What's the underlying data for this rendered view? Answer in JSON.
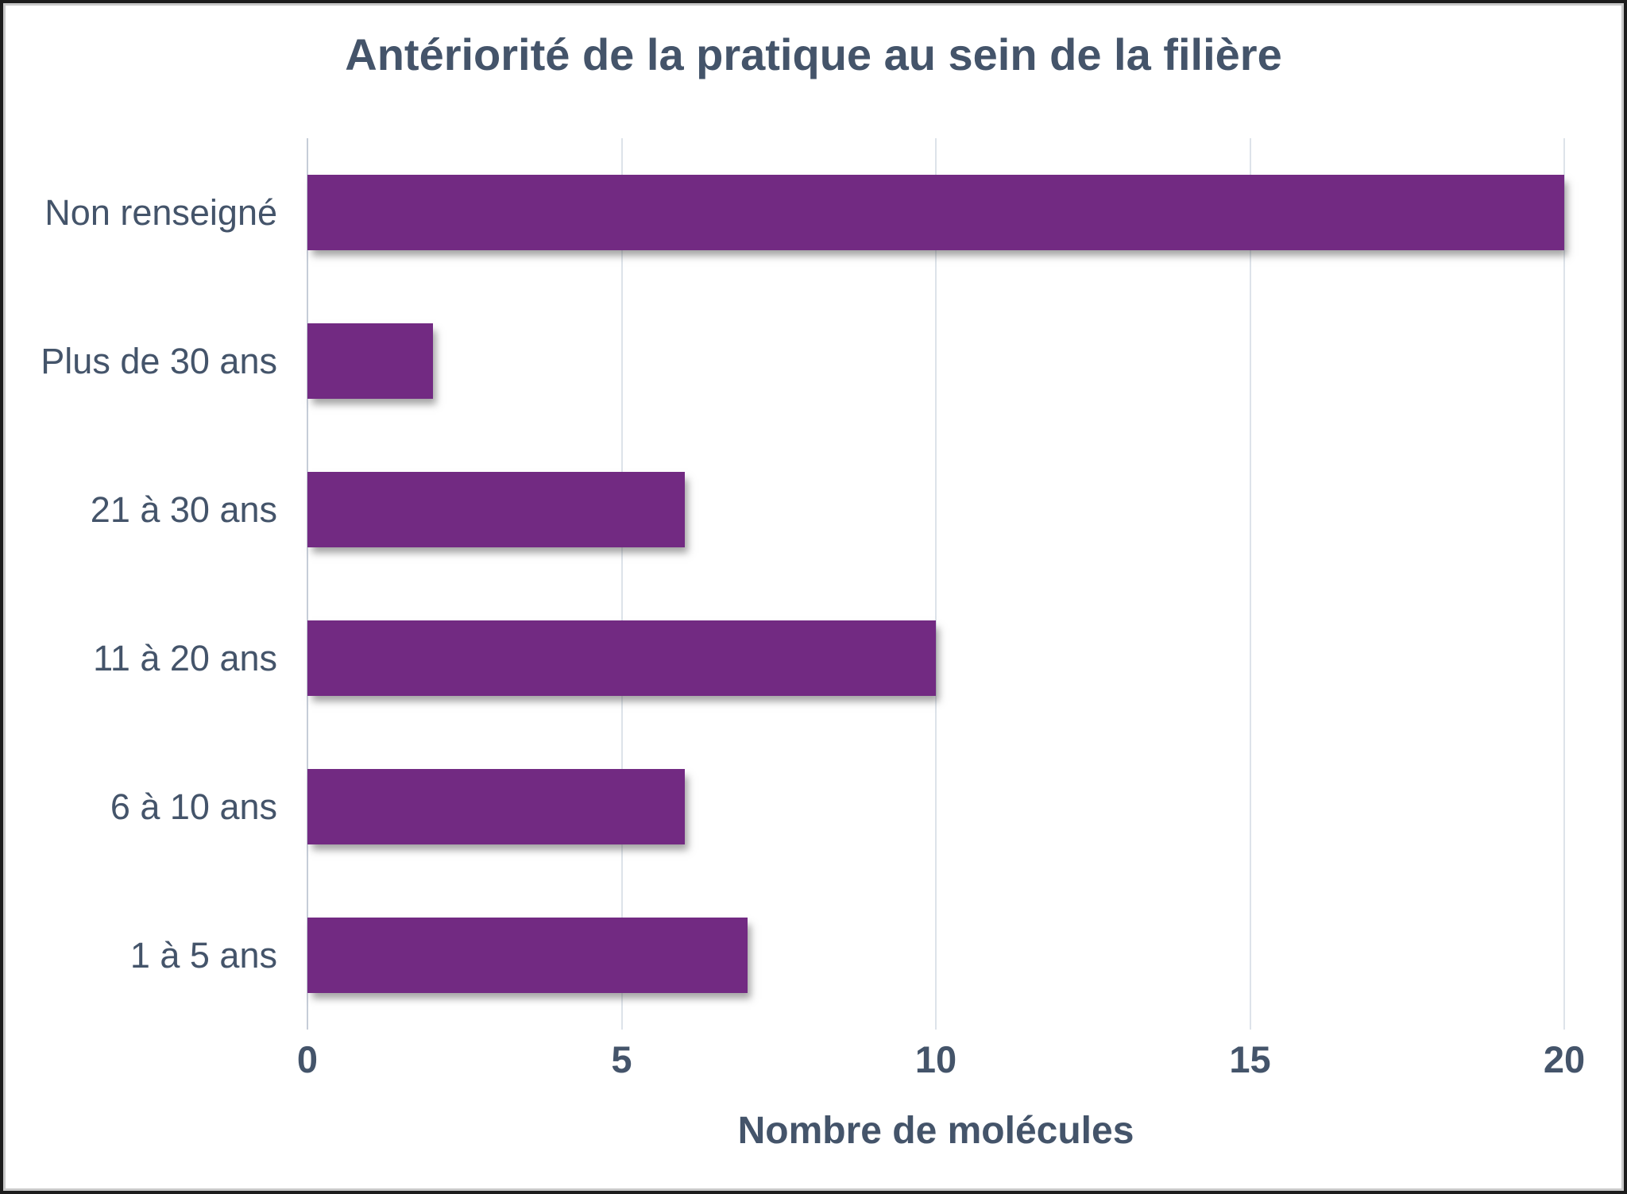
{
  "chart_data": {
    "type": "bar",
    "orientation": "horizontal",
    "title": "Antériorité de la pratique au sein de la filière",
    "categories": [
      "Non renseigné",
      "Plus de 30 ans",
      "21 à 30 ans",
      "11 à 20 ans",
      "6 à 10 ans",
      "1 à 5 ans"
    ],
    "values": [
      20,
      2,
      6,
      10,
      6,
      7
    ],
    "xlabel": "Nombre de molécules",
    "ylabel": "",
    "xlim": [
      0,
      20
    ],
    "xticks": [
      0,
      5,
      10,
      15,
      20
    ],
    "grid": true,
    "legend": false,
    "colors": {
      "bar": "#722A82",
      "text": "#44546A",
      "gridline": "#dde3ea",
      "axisline": "#c6cdd8",
      "background": "#ffffff"
    }
  }
}
